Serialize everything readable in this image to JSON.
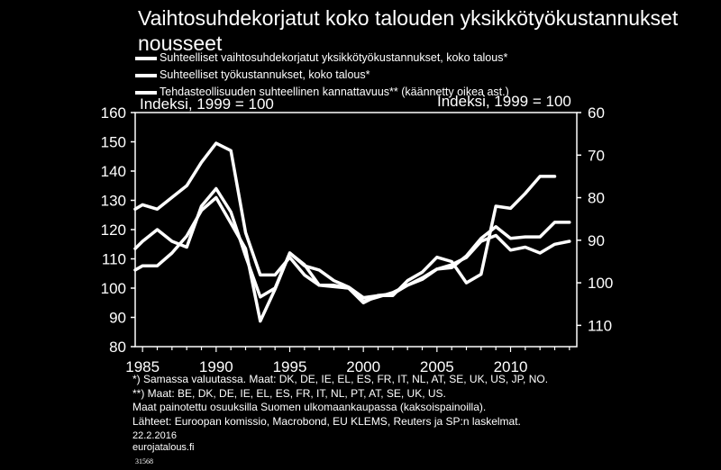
{
  "chart_data": {
    "type": "line",
    "title": "Vaihtosuhdekorjatut koko talouden yksikkötyökustannukset nousseet",
    "left_axis_label": "Indeksi, 1999 = 100",
    "right_axis_label": "Indeksi, 1999 = 100",
    "xlim": [
      1984.5,
      2014.5
    ],
    "ylim_left": [
      80,
      160
    ],
    "ylim_right": [
      115,
      60
    ],
    "right_axis_inverted": true,
    "x_ticks": [
      1985,
      1990,
      1995,
      2000,
      2005,
      2010
    ],
    "y_ticks_left": [
      80,
      90,
      100,
      110,
      120,
      130,
      140,
      150,
      160
    ],
    "y_ticks_right": [
      60,
      70,
      80,
      90,
      100,
      110
    ],
    "grid": false,
    "legend_position": "top-left",
    "series": [
      {
        "name": "Suhteelliset vaihtosuhdekorjatut yksikkötyökustannukset, koko talous*",
        "axis": "left",
        "color": "#ffffff",
        "x": [
          1984.5,
          1985,
          1986,
          1987,
          1988,
          1989,
          1990,
          1991,
          1992,
          1993,
          1994,
          1995,
          1996,
          1997,
          1998,
          1999,
          2000,
          2001,
          2002,
          2003,
          2004,
          2005,
          2006,
          2007,
          2008,
          2009,
          2010,
          2011,
          2012,
          2013,
          2014
        ],
        "y": [
          127,
          128.5,
          127,
          131,
          135,
          143,
          149.5,
          147,
          119,
          104.5,
          104.5,
          110.5,
          104.5,
          101,
          101,
          100,
          95,
          97.5,
          98,
          101,
          103,
          106.5,
          107,
          111,
          117,
          121,
          117,
          117.5,
          117.5,
          122.5,
          122.5
        ]
      },
      {
        "name": "Suhteelliset työkustannukset, koko talous*",
        "axis": "left",
        "color": "#ffffff",
        "x": [
          1984.5,
          1985,
          1986,
          1987,
          1988,
          1989,
          1990,
          1991,
          1992,
          1993,
          1994,
          1995,
          1996,
          1997,
          1998,
          1999,
          2000,
          2001,
          2002,
          2003,
          2004,
          2005,
          2006,
          2007,
          2008,
          2009,
          2010,
          2011,
          2012,
          2013,
          2014
        ],
        "y": [
          113.5,
          116,
          120,
          116,
          114,
          128,
          134,
          126,
          111,
          97,
          100,
          112,
          108,
          101,
          100.5,
          100,
          95.5,
          97,
          98.5,
          101,
          103.5,
          106.5,
          108,
          110.5,
          116,
          118,
          113,
          114,
          112,
          115,
          116
        ]
      },
      {
        "name": "Tehdasteollisuuden suhteellinen kannattavuus** (käännetty oikea ast.)",
        "axis": "right",
        "color": "#ffffff",
        "x": [
          1984.5,
          1985,
          1986,
          1987,
          1988,
          1989,
          1990,
          1991,
          1992,
          1993,
          1994,
          1995,
          1996,
          1997,
          1998,
          1999,
          2000,
          2001,
          2002,
          2003,
          2004,
          2005,
          2006,
          2007,
          2008,
          2009,
          2010,
          2011,
          2012,
          2013
        ],
        "y": [
          97,
          96,
          96,
          93,
          89,
          83,
          80,
          86,
          92,
          109,
          101.5,
          93,
          96,
          97,
          99.5,
          101,
          103.5,
          103,
          103,
          99.5,
          97.5,
          94,
          95,
          100,
          98,
          82,
          82.5,
          79,
          75,
          75
        ]
      }
    ]
  },
  "notes": [
    "*) Samassa valuutassa.  Maat: DK, DE, IE, EL, ES, FR, IT, NL, AT, SE, UK, US, JP, NO.",
    "**) Maat: BE, DK, DE, IE, EL, ES, FR, IT, NL, PT, AT, SE, UK, US.",
    "Maat painotettu osuuksilla  Suomen ulkomaankaupassa  (kaksoispainoilla).",
    "Lähteet:  Euroopan komissio, Macrobond, EU KLEMS, Reuters ja SP:n laskelmat."
  ],
  "date": "22.2.2016",
  "site": "eurojatalous.fi",
  "code": "31568"
}
